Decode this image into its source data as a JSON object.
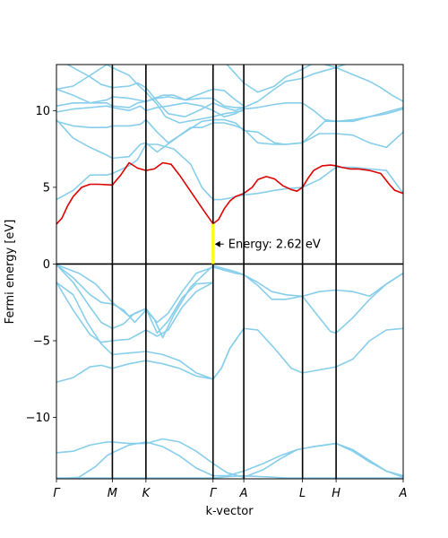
{
  "chart_data": {
    "type": "line",
    "xlabel": "k-vector",
    "ylabel": "Fermi energy [eV]",
    "ylim": [
      -14,
      13
    ],
    "yticks": [
      -10,
      -5,
      0,
      5,
      10
    ],
    "ytick_labels": [
      "−10",
      "−5",
      "0",
      "5",
      "10"
    ],
    "xlim": [
      0,
      6.2
    ],
    "kpoints": [
      {
        "label": "Γ",
        "x": 0
      },
      {
        "label": "M",
        "x": 1.0
      },
      {
        "label": "K",
        "x": 1.6
      },
      {
        "label": "Γ",
        "x": 2.8
      },
      {
        "label": "A",
        "x": 3.35
      },
      {
        "label": "L",
        "x": 4.4
      },
      {
        "label": "H",
        "x": 5.0
      },
      {
        "label": "A",
        "x": 6.2
      }
    ],
    "fermi_level": 0,
    "band_color": "#87ceeb",
    "highlight_color": "#dd0000",
    "gap_color": "#ffff00",
    "annotation": {
      "text": "Energy: 2.62 eV",
      "x": 2.8,
      "y": 1.3,
      "gap_from": 0,
      "gap_to": 2.62
    },
    "highlight_band": {
      "x": [
        0,
        0.1,
        0.2,
        0.3,
        0.45,
        0.6,
        0.75,
        1.0,
        1.15,
        1.3,
        1.45,
        1.6,
        1.75,
        1.9,
        2.05,
        2.2,
        2.35,
        2.5,
        2.65,
        2.8,
        2.9,
        3.0,
        3.1,
        3.2,
        3.35,
        3.5,
        3.6,
        3.75,
        3.9,
        4.05,
        4.2,
        4.3,
        4.4,
        4.5,
        4.6,
        4.75,
        4.9,
        5.0,
        5.1,
        5.25,
        5.4,
        5.6,
        5.8,
        5.95,
        6.05,
        6.2
      ],
      "y": [
        2.6,
        3.0,
        3.8,
        4.4,
        5.0,
        5.2,
        5.2,
        5.15,
        5.8,
        6.6,
        6.25,
        6.1,
        6.2,
        6.6,
        6.5,
        5.8,
        5.0,
        4.2,
        3.4,
        2.62,
        2.9,
        3.6,
        4.1,
        4.4,
        4.6,
        5.0,
        5.5,
        5.7,
        5.55,
        5.1,
        4.85,
        4.75,
        5.0,
        5.6,
        6.1,
        6.4,
        6.45,
        6.4,
        6.3,
        6.2,
        6.2,
        6.1,
        5.9,
        5.2,
        4.8,
        4.6
      ]
    },
    "series": [
      {
        "x": [
          0,
          0.25,
          0.55,
          0.8,
          1.0,
          1.3,
          1.6,
          1.8,
          2.05,
          2.3,
          2.55,
          2.8,
          2.95,
          3.1,
          3.35,
          3.6,
          3.9,
          4.1,
          4.4,
          4.7,
          5.0,
          5.3,
          5.6,
          5.9,
          6.2
        ],
        "y": [
          -13.95,
          -13.95,
          -13.95,
          -13.95,
          -13.95,
          -13.95,
          -13.95,
          -13.95,
          -13.95,
          -13.95,
          -13.95,
          -13.95,
          -13.9,
          -13.85,
          -13.8,
          -13.85,
          -13.9,
          -13.95,
          -13.95,
          -13.95,
          -13.95,
          -13.95,
          -13.95,
          -13.95,
          -13.95
        ]
      },
      {
        "x": [
          0,
          0.4,
          0.7,
          0.9,
          1.0,
          1.3,
          1.6,
          1.9,
          2.2,
          2.5,
          2.8,
          3.05,
          3.35,
          3.7,
          4.0,
          4.3,
          4.6,
          5.0,
          5.3,
          5.6,
          5.9,
          6.2
        ],
        "y": [
          -14.0,
          -13.9,
          -13.2,
          -12.5,
          -12.3,
          -11.8,
          -11.6,
          -11.9,
          -12.5,
          -13.3,
          -13.8,
          -13.8,
          -13.5,
          -13.0,
          -12.5,
          -12.1,
          -11.9,
          -11.7,
          -12.1,
          -12.8,
          -13.5,
          -13.9
        ]
      },
      {
        "x": [
          0,
          0.3,
          0.6,
          0.9,
          1.0,
          1.3,
          1.6,
          1.9,
          2.2,
          2.5,
          2.8,
          3.05,
          3.35,
          3.7,
          4.0,
          4.3,
          4.6,
          5.0,
          5.3,
          5.6,
          5.9,
          6.2
        ],
        "y": [
          -12.3,
          -12.2,
          -11.8,
          -11.6,
          -11.6,
          -11.7,
          -11.7,
          -11.4,
          -11.6,
          -12.2,
          -13.0,
          -13.6,
          -13.9,
          -13.4,
          -12.7,
          -12.1,
          -11.9,
          -11.7,
          -12.2,
          -12.9,
          -13.5,
          -13.8
        ]
      },
      {
        "x": [
          0,
          0.3,
          0.6,
          0.8,
          1.0,
          1.3,
          1.6,
          1.9,
          2.2,
          2.5,
          2.8,
          2.95,
          3.1,
          3.35,
          3.6,
          3.9,
          4.2,
          4.4,
          4.7,
          5.0,
          5.3,
          5.6,
          5.9,
          6.2
        ],
        "y": [
          -7.7,
          -7.4,
          -6.7,
          -6.6,
          -6.8,
          -6.5,
          -6.3,
          -6.5,
          -6.8,
          -7.3,
          -7.5,
          -6.8,
          -5.5,
          -4.2,
          -4.3,
          -5.5,
          -6.8,
          -7.1,
          -6.9,
          -6.7,
          -6.2,
          -5.0,
          -4.3,
          -4.2
        ]
      },
      {
        "x": [
          0,
          0.3,
          0.55,
          0.8,
          1.0,
          1.3,
          1.6,
          1.9,
          2.2,
          2.5,
          2.8,
          2.95,
          3.1,
          3.35
        ],
        "y": [
          -1.2,
          -2.0,
          -3.8,
          -5.2,
          -5.9,
          -5.8,
          -5.7,
          -5.9,
          -6.3,
          -7.1,
          -7.5,
          -6.8,
          -5.5,
          -4.2
        ]
      },
      {
        "x": [
          0,
          0.3,
          0.6,
          0.8,
          1.0,
          1.3,
          1.6,
          1.8,
          2.0,
          2.25,
          2.5,
          2.8
        ],
        "y": [
          -1.2,
          -3.0,
          -4.6,
          -5.1,
          -5.0,
          -4.9,
          -4.3,
          -4.7,
          -4.3,
          -2.8,
          -1.8,
          -1.2
        ]
      },
      {
        "x": [
          0,
          0.3,
          0.6,
          0.8,
          1.0,
          1.2,
          1.4,
          1.6,
          1.8,
          2.0,
          2.25,
          2.5,
          2.8
        ],
        "y": [
          -0.05,
          -1.2,
          -2.8,
          -3.8,
          -4.2,
          -3.9,
          -3.2,
          -2.9,
          -4.5,
          -3.7,
          -2.2,
          -1.3,
          -1.2
        ]
      },
      {
        "x": [
          0,
          0.3,
          0.6,
          0.8,
          1.0,
          1.2,
          1.4,
          1.6,
          1.8,
          2.0,
          2.25,
          2.5,
          2.8
        ],
        "y": [
          -0.05,
          -0.9,
          -2.0,
          -2.5,
          -2.6,
          -3.0,
          -3.8,
          -3.0,
          -3.8,
          -3.2,
          -1.8,
          -0.6,
          -0.2
        ]
      },
      {
        "x": [
          0,
          0.4,
          0.7,
          1.0,
          1.3,
          1.6,
          1.75,
          1.9,
          2.1,
          2.4,
          2.8
        ],
        "y": [
          -0.05,
          -0.6,
          -1.3,
          -2.5,
          -3.4,
          -2.9,
          -3.6,
          -4.8,
          -3.3,
          -1.5,
          -0.1
        ]
      },
      {
        "x": [
          2.8,
          3.0,
          3.2,
          3.35,
          3.6,
          3.85,
          4.1,
          4.4,
          4.7,
          5.0,
          5.3,
          5.6,
          5.9,
          6.2
        ],
        "y": [
          -0.2,
          -0.4,
          -0.6,
          -0.7,
          -1.4,
          -2.3,
          -2.3,
          -2.1,
          -1.8,
          -1.7,
          -1.8,
          -2.1,
          -1.3,
          -0.6
        ]
      },
      {
        "x": [
          2.8,
          3.0,
          3.2,
          3.35,
          3.6,
          3.85,
          4.1,
          4.4,
          4.7,
          4.9,
          5.0,
          5.3,
          5.6,
          5.9,
          6.2
        ],
        "y": [
          -0.1,
          -0.3,
          -0.5,
          -0.7,
          -1.2,
          -1.8,
          -2.0,
          -2.1,
          -3.5,
          -4.4,
          -4.5,
          -3.5,
          -2.3,
          -1.3,
          -0.6
        ]
      },
      {
        "x": [
          0,
          0.3,
          0.6,
          0.9,
          1.0,
          1.3,
          1.45,
          1.6,
          1.8,
          2.1,
          2.4,
          2.6,
          2.8,
          2.95,
          3.1,
          3.35,
          3.6,
          3.9,
          4.1,
          4.4,
          4.7,
          5.0,
          5.3,
          5.6,
          5.9,
          6.2
        ],
        "y": [
          4.2,
          4.8,
          5.8,
          5.8,
          5.9,
          6.4,
          6.8,
          7.8,
          7.8,
          7.5,
          6.5,
          5.0,
          4.2,
          4.2,
          4.3,
          4.5,
          4.6,
          4.8,
          4.9,
          5.0,
          5.5,
          6.3,
          6.3,
          6.2,
          6.1,
          4.6
        ]
      },
      {
        "x": [
          0,
          0.3,
          0.6,
          0.9,
          1.0,
          1.3,
          1.5,
          1.6,
          1.8,
          2.1,
          2.4,
          2.6,
          2.8,
          3.0,
          3.2,
          3.35,
          3.6,
          3.9,
          4.1,
          4.4,
          4.7,
          5.0,
          5.3,
          5.6,
          5.9,
          6.2
        ],
        "y": [
          9.4,
          8.2,
          7.6,
          7.1,
          6.9,
          7.0,
          7.8,
          7.9,
          7.3,
          8.1,
          8.9,
          8.9,
          9.2,
          9.2,
          9.0,
          8.8,
          7.9,
          7.8,
          7.8,
          7.9,
          8.5,
          8.5,
          8.4,
          7.9,
          7.6,
          8.6
        ]
      },
      {
        "x": [
          0,
          0.3,
          0.6,
          0.9,
          1.0,
          1.3,
          1.5,
          1.6,
          1.8,
          2.0,
          2.3,
          2.6,
          2.8,
          3.0,
          3.2,
          3.35,
          3.6,
          3.9,
          4.1,
          4.4,
          4.6,
          4.8,
          5.0,
          5.3,
          5.6,
          5.9,
          6.2
        ],
        "y": [
          9.3,
          9.0,
          8.9,
          8.9,
          9.0,
          9.0,
          9.1,
          9.4,
          8.6,
          7.9,
          8.6,
          9.3,
          9.4,
          9.4,
          9.2,
          8.7,
          8.6,
          7.9,
          7.8,
          7.9,
          8.6,
          9.3,
          9.3,
          9.4,
          9.6,
          9.8,
          10.1
        ]
      },
      {
        "x": [
          0,
          0.3,
          0.6,
          0.9,
          1.0,
          1.3,
          1.5,
          1.6,
          1.8,
          2.0,
          2.3,
          2.6,
          2.8,
          3.0,
          3.2,
          3.35,
          3.6,
          3.9,
          4.1,
          4.4,
          4.6,
          4.8,
          5.0,
          5.3,
          5.6,
          5.9,
          6.2
        ],
        "y": [
          9.9,
          10.1,
          10.2,
          10.3,
          10.2,
          10.0,
          10.3,
          10.0,
          10.2,
          10.3,
          10.5,
          10.3,
          10.0,
          9.6,
          9.8,
          10.1,
          10.2,
          10.4,
          10.5,
          10.5,
          10.0,
          9.4,
          9.3,
          9.3,
          9.6,
          9.9,
          10.2
        ]
      },
      {
        "x": [
          0,
          0.3,
          0.6,
          0.9,
          1.0,
          1.3,
          1.45,
          1.6,
          1.8,
          2.0,
          2.3,
          2.6,
          2.8,
          3.0,
          3.2,
          3.35,
          3.6,
          3.9,
          4.1,
          4.4,
          4.6,
          4.8,
          5.0,
          5.3,
          5.6,
          5.9,
          6.2
        ],
        "y": [
          10.3,
          10.5,
          10.5,
          10.5,
          10.3,
          10.2,
          10.5,
          10.6,
          10.8,
          10.9,
          10.7,
          10.8,
          10.8,
          10.3,
          10.2,
          10.2,
          10.6,
          11.4,
          11.9,
          12.1,
          12.4,
          12.6,
          12.8,
          13.2,
          13.4,
          13.5,
          13.6
        ]
      },
      {
        "x": [
          0,
          0.3,
          0.6,
          0.9,
          1.0,
          1.3,
          1.45,
          1.6,
          1.8,
          2.0,
          2.3,
          2.6,
          2.8,
          3.0,
          3.2,
          3.35,
          3.6,
          3.9,
          4.1,
          4.4,
          4.6,
          4.8,
          5.0,
          5.2
        ],
        "y": [
          11.4,
          11.6,
          12.3,
          13.0,
          13.2,
          13.2,
          13.4,
          13.4,
          13.3,
          13.1,
          13.2,
          13.3,
          13.4,
          13.2,
          12.4,
          11.8,
          11.2,
          11.6,
          12.2,
          12.7,
          13.1,
          13.3,
          13.4,
          13.5
        ]
      },
      {
        "x": [
          0,
          0.3,
          0.6,
          0.9,
          1.0,
          1.3,
          1.6,
          1.9,
          2.1,
          2.3,
          2.5,
          2.8,
          3.0,
          3.2,
          3.35
        ],
        "y": [
          11.4,
          11.0,
          10.5,
          10.7,
          10.9,
          10.8,
          10.6,
          11.0,
          11.0,
          10.7,
          11.0,
          11.4,
          11.3,
          10.7,
          10.3
        ]
      },
      {
        "x": [
          0,
          0.3,
          0.6,
          0.8,
          1.0,
          1.3,
          1.45,
          1.6,
          1.8,
          2.0,
          2.3,
          2.6,
          2.8,
          3.0,
          3.2,
          3.35
        ],
        "y": [
          13.4,
          12.8,
          12.2,
          11.7,
          11.5,
          11.6,
          11.8,
          11.5,
          10.6,
          9.8,
          9.6,
          10.1,
          10.5,
          10.2,
          10.0,
          10.2
        ]
      },
      {
        "x": [
          0,
          0.3,
          0.6,
          0.9,
          1.0,
          1.3,
          1.45,
          1.6,
          1.8,
          1.95,
          2.2,
          2.5,
          2.8,
          3.0,
          3.2,
          3.35
        ],
        "y": [
          13.5,
          13.3,
          13.2,
          13.0,
          12.8,
          12.3,
          11.7,
          11.2,
          10.4,
          9.6,
          9.2,
          9.4,
          9.6,
          9.8,
          9.9,
          10.0
        ]
      },
      {
        "x": [
          4.4,
          4.6,
          4.8,
          5.0,
          5.2,
          5.4,
          5.6,
          5.8,
          6.0,
          6.2
        ],
        "y": [
          13.3,
          13.2,
          13.0,
          12.8,
          12.5,
          12.2,
          11.9,
          11.5,
          11.0,
          10.6
        ]
      }
    ]
  }
}
